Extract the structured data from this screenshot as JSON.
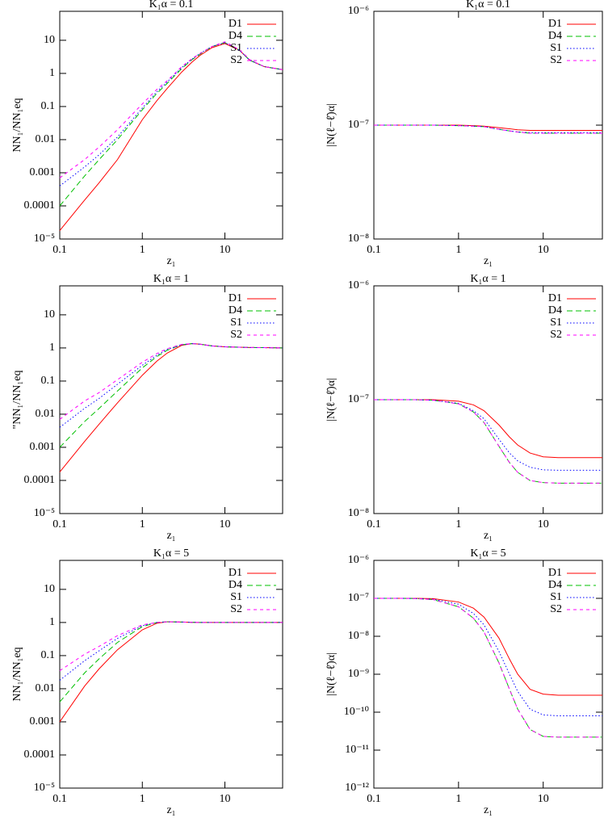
{
  "chart_data": [
    {
      "type": "line",
      "title": "K₁α = 0.1",
      "xlabel": "z₁",
      "ylabel": "NN₁/NN₁eq",
      "log_x": true,
      "log_y": true,
      "legend": "upper right",
      "grid": false,
      "xlim": [
        0.1,
        50
      ],
      "xticks": [
        0.1,
        1,
        10
      ],
      "ylim": [
        1e-05,
        75
      ],
      "yticks": [
        {
          "value": 1e-05,
          "label": "10⁻⁵"
        },
        0.0001,
        0.001,
        0.01,
        0.1,
        1,
        10
      ],
      "x": [
        0.1,
        0.2,
        0.3,
        0.5,
        1,
        1.5,
        2,
        3,
        4,
        5,
        7,
        10,
        15,
        20,
        30,
        50
      ],
      "series": [
        {
          "name": "D1",
          "color": "#ff0000",
          "style": "solid",
          "values": [
            1.8e-05,
            0.00015,
            0.0005,
            0.0025,
            0.04,
            0.15,
            0.35,
            1.1,
            2.2,
            3.5,
            6,
            8,
            5,
            2.5,
            1.6,
            1.3
          ]
        },
        {
          "name": "D4",
          "color": "#00c000",
          "style": "dashed",
          "values": [
            0.0001,
            0.0008,
            0.0025,
            0.01,
            0.08,
            0.25,
            0.5,
            1.4,
            2.6,
            3.8,
            6.5,
            8.5,
            5,
            2.5,
            1.6,
            1.3
          ]
        },
        {
          "name": "S1",
          "color": "#0000ff",
          "style": "dotted",
          "values": [
            0.0004,
            0.0015,
            0.0035,
            0.012,
            0.09,
            0.28,
            0.55,
            1.5,
            2.7,
            4,
            6.5,
            8.5,
            5,
            2.5,
            1.6,
            1.3
          ]
        },
        {
          "name": "S2",
          "color": "#ff00ff",
          "style": "short-dashed",
          "values": [
            0.0007,
            0.0025,
            0.006,
            0.02,
            0.12,
            0.33,
            0.6,
            1.6,
            2.8,
            4,
            6.5,
            9,
            5.2,
            2.6,
            1.6,
            1.3
          ]
        }
      ]
    },
    {
      "type": "line",
      "title": "K₁α = 0.1",
      "xlabel": "z₁",
      "ylabel": "|N(ℓ−ℓ̄)α|",
      "log_x": true,
      "log_y": true,
      "legend": "upper right",
      "grid": false,
      "xlim": [
        0.1,
        50
      ],
      "xticks": [
        0.1,
        1,
        10
      ],
      "ylim": [
        1e-08,
        1e-06
      ],
      "yticks": [
        {
          "value": 1e-08,
          "label": "10⁻⁸"
        },
        {
          "value": 1e-07,
          "label": "10⁻⁷"
        },
        {
          "value": 1e-06,
          "label": "10⁻⁶"
        }
      ],
      "x": [
        0.1,
        0.2,
        0.3,
        0.5,
        1,
        1.5,
        2,
        3,
        4,
        5,
        7,
        10,
        15,
        20,
        30,
        50
      ],
      "series": [
        {
          "name": "D1",
          "color": "#ff0000",
          "style": "solid",
          "values": [
            1e-07,
            1e-07,
            1e-07,
            1e-07,
            1e-07,
            9.9e-08,
            9.8e-08,
            9.5e-08,
            9.3e-08,
            9.1e-08,
            9e-08,
            9e-08,
            9e-08,
            9e-08,
            9e-08,
            9e-08
          ]
        },
        {
          "name": "D4",
          "color": "#00c000",
          "style": "dashed",
          "values": [
            1e-07,
            1e-07,
            1e-07,
            1e-07,
            9.9e-08,
            9.8e-08,
            9.7e-08,
            9.2e-08,
            8.9e-08,
            8.7e-08,
            8.5e-08,
            8.5e-08,
            8.5e-08,
            8.5e-08,
            8.5e-08,
            8.5e-08
          ]
        },
        {
          "name": "S1",
          "color": "#0000ff",
          "style": "dotted",
          "values": [
            1e-07,
            1e-07,
            1e-07,
            1e-07,
            9.9e-08,
            9.8e-08,
            9.7e-08,
            9.2e-08,
            8.9e-08,
            8.7e-08,
            8.6e-08,
            8.6e-08,
            8.6e-08,
            8.6e-08,
            8.6e-08,
            8.6e-08
          ]
        },
        {
          "name": "S2",
          "color": "#ff00ff",
          "style": "short-dashed",
          "values": [
            1e-07,
            1e-07,
            1e-07,
            1e-07,
            9.9e-08,
            9.8e-08,
            9.7e-08,
            9.2e-08,
            8.9e-08,
            8.7e-08,
            8.5e-08,
            8.5e-08,
            8.5e-08,
            8.5e-08,
            8.5e-08,
            8.5e-08
          ]
        }
      ]
    },
    {
      "type": "line",
      "title": "K₁α = 1",
      "xlabel": "z₁",
      "ylabel": "\"NN₁/NN₁eq",
      "log_x": true,
      "log_y": true,
      "legend": "upper right",
      "grid": false,
      "xlim": [
        0.1,
        50
      ],
      "xticks": [
        0.1,
        1,
        10
      ],
      "ylim": [
        1e-05,
        75
      ],
      "yticks": [
        {
          "value": 1e-05,
          "label": "10⁻⁵"
        },
        0.0001,
        0.001,
        0.01,
        0.1,
        1,
        10
      ],
      "x": [
        0.1,
        0.2,
        0.3,
        0.5,
        1,
        1.5,
        2,
        3,
        4,
        5,
        7,
        10,
        15,
        20,
        30,
        50
      ],
      "series": [
        {
          "name": "D1",
          "color": "#ff0000",
          "style": "solid",
          "values": [
            0.00018,
            0.0015,
            0.005,
            0.022,
            0.15,
            0.4,
            0.7,
            1.2,
            1.35,
            1.3,
            1.15,
            1.08,
            1.05,
            1.03,
            1.02,
            1
          ]
        },
        {
          "name": "D4",
          "color": "#00c000",
          "style": "dashed",
          "values": [
            0.001,
            0.006,
            0.015,
            0.05,
            0.25,
            0.55,
            0.85,
            1.25,
            1.35,
            1.3,
            1.15,
            1.08,
            1.05,
            1.03,
            1.02,
            1
          ]
        },
        {
          "name": "S1",
          "color": "#0000ff",
          "style": "dotted",
          "values": [
            0.004,
            0.015,
            0.03,
            0.08,
            0.3,
            0.6,
            0.9,
            1.25,
            1.35,
            1.3,
            1.15,
            1.08,
            1.05,
            1.03,
            1.02,
            1
          ]
        },
        {
          "name": "S2",
          "color": "#ff00ff",
          "style": "short-dashed",
          "values": [
            0.007,
            0.025,
            0.045,
            0.11,
            0.37,
            0.68,
            0.95,
            1.28,
            1.35,
            1.3,
            1.15,
            1.08,
            1.05,
            1.03,
            1.02,
            1
          ]
        }
      ]
    },
    {
      "type": "line",
      "title": "K₁α = 1",
      "xlabel": "z₁",
      "ylabel": "|N(ℓ−ℓ̄)α|",
      "log_x": true,
      "log_y": true,
      "legend": "upper right",
      "grid": false,
      "xlim": [
        0.1,
        50
      ],
      "xticks": [
        0.1,
        1,
        10
      ],
      "ylim": [
        1e-08,
        1e-06
      ],
      "yticks": [
        {
          "value": 1e-08,
          "label": "10⁻⁸"
        },
        {
          "value": 1e-07,
          "label": "10⁻⁷"
        },
        {
          "value": 1e-06,
          "label": "10⁻⁶"
        }
      ],
      "x": [
        0.1,
        0.2,
        0.3,
        0.5,
        1,
        1.5,
        2,
        3,
        4,
        5,
        7,
        10,
        15,
        20,
        30,
        50
      ],
      "series": [
        {
          "name": "D1",
          "color": "#ff0000",
          "style": "solid",
          "values": [
            1e-07,
            1e-07,
            1e-07,
            1e-07,
            9.7e-08,
            9e-08,
            8e-08,
            6e-08,
            4.7e-08,
            4e-08,
            3.4e-08,
            3.15e-08,
            3.1e-08,
            3.1e-08,
            3.1e-08,
            3.1e-08
          ]
        },
        {
          "name": "D4",
          "color": "#00c000",
          "style": "dashed",
          "values": [
            1e-07,
            1e-07,
            1e-07,
            9.9e-08,
            9.2e-08,
            7.8e-08,
            6.3e-08,
            3.9e-08,
            2.8e-08,
            2.3e-08,
            1.95e-08,
            1.87e-08,
            1.85e-08,
            1.85e-08,
            1.85e-08,
            1.85e-08
          ]
        },
        {
          "name": "S1",
          "color": "#0000ff",
          "style": "dotted",
          "values": [
            1e-07,
            1e-07,
            1e-07,
            9.9e-08,
            9.3e-08,
            8e-08,
            6.8e-08,
            4.5e-08,
            3.4e-08,
            2.9e-08,
            2.55e-08,
            2.42e-08,
            2.4e-08,
            2.4e-08,
            2.4e-08,
            2.4e-08
          ]
        },
        {
          "name": "S2",
          "color": "#ff00ff",
          "style": "short-dashed",
          "values": [
            1e-07,
            1e-07,
            1e-07,
            9.9e-08,
            9.2e-08,
            7.8e-08,
            6.3e-08,
            3.9e-08,
            2.8e-08,
            2.3e-08,
            1.95e-08,
            1.87e-08,
            1.85e-08,
            1.85e-08,
            1.85e-08,
            1.85e-08
          ]
        }
      ]
    },
    {
      "type": "line",
      "title": "K₁α = 5",
      "xlabel": "z₁",
      "ylabel": "NN₁/NN₁eq",
      "log_x": true,
      "log_y": true,
      "legend": "upper right",
      "grid": false,
      "xlim": [
        0.1,
        50
      ],
      "xticks": [
        0.1,
        1,
        10
      ],
      "ylim": [
        1e-05,
        75
      ],
      "yticks": [
        {
          "value": 1e-05,
          "label": "10⁻⁵"
        },
        0.0001,
        0.001,
        0.01,
        0.1,
        1,
        10
      ],
      "x": [
        0.1,
        0.2,
        0.3,
        0.5,
        1,
        1.5,
        2,
        3,
        4,
        5,
        7,
        10,
        15,
        20,
        30,
        50
      ],
      "series": [
        {
          "name": "D1",
          "color": "#ff0000",
          "style": "solid",
          "values": [
            0.001,
            0.012,
            0.04,
            0.15,
            0.6,
            0.95,
            1.05,
            1.03,
            1.01,
            1,
            1,
            1,
            1,
            1,
            1,
            1
          ]
        },
        {
          "name": "D4",
          "color": "#00c000",
          "style": "dashed",
          "values": [
            0.004,
            0.03,
            0.08,
            0.25,
            0.75,
            1,
            1.05,
            1.03,
            1.01,
            1,
            1,
            1,
            1,
            1,
            1,
            1
          ]
        },
        {
          "name": "S1",
          "color": "#0000ff",
          "style": "dotted",
          "values": [
            0.018,
            0.07,
            0.14,
            0.33,
            0.8,
            1,
            1.05,
            1.03,
            1.01,
            1,
            1,
            1,
            1,
            1,
            1,
            1
          ]
        },
        {
          "name": "S2",
          "color": "#ff00ff",
          "style": "short-dashed",
          "values": [
            0.035,
            0.11,
            0.19,
            0.4,
            0.85,
            1,
            1.05,
            1.03,
            1.01,
            1,
            1,
            1,
            1,
            1,
            1,
            1
          ]
        }
      ]
    },
    {
      "type": "line",
      "title": "K₁α = 5",
      "xlabel": "z₁",
      "ylabel": "|N(ℓ−ℓ̄)α|",
      "log_x": true,
      "log_y": true,
      "legend": "upper right",
      "grid": false,
      "xlim": [
        0.1,
        50
      ],
      "xticks": [
        0.1,
        1,
        10
      ],
      "ylim": [
        1e-12,
        1e-06
      ],
      "yticks": [
        {
          "value": 1e-12,
          "label": "10⁻¹²"
        },
        {
          "value": 1e-11,
          "label": "10⁻¹¹"
        },
        {
          "value": 1e-10,
          "label": "10⁻¹⁰"
        },
        {
          "value": 1e-09,
          "label": "10⁻⁹"
        },
        {
          "value": 1e-08,
          "label": "10⁻⁸"
        },
        {
          "value": 1e-07,
          "label": "10⁻⁷"
        },
        {
          "value": 1e-06,
          "label": "10⁻⁶"
        }
      ],
      "x": [
        0.1,
        0.2,
        0.3,
        0.5,
        1,
        1.5,
        2,
        3,
        4,
        5,
        7,
        10,
        15,
        20,
        30,
        50
      ],
      "series": [
        {
          "name": "D1",
          "color": "#ff0000",
          "style": "solid",
          "values": [
            1e-07,
            1e-07,
            1e-07,
            9.8e-08,
            8e-08,
            5.5e-08,
            3.2e-08,
            9e-09,
            2.5e-09,
            1e-09,
            4e-10,
            3e-10,
            2.8e-10,
            2.8e-10,
            2.8e-10,
            2.8e-10
          ]
        },
        {
          "name": "D4",
          "color": "#00c000",
          "style": "dashed",
          "values": [
            1e-07,
            1e-07,
            9.9e-08,
            9.3e-08,
            6e-08,
            3e-08,
            1.3e-08,
            2e-09,
            4e-10,
            1.2e-10,
            3.5e-11,
            2.3e-11,
            2.2e-11,
            2.2e-11,
            2.2e-11,
            2.2e-11
          ]
        },
        {
          "name": "S1",
          "color": "#0000ff",
          "style": "dotted",
          "values": [
            1e-07,
            1e-07,
            9.9e-08,
            9.5e-08,
            7e-08,
            4e-08,
            2e-08,
            4e-09,
            1e-09,
            3.5e-10,
            1.2e-10,
            8.5e-11,
            8e-11,
            8e-11,
            8e-11,
            8e-11
          ]
        },
        {
          "name": "S2",
          "color": "#ff00ff",
          "style": "short-dashed",
          "values": [
            1e-07,
            1e-07,
            9.9e-08,
            9.3e-08,
            6e-08,
            3e-08,
            1.3e-08,
            2e-09,
            4e-10,
            1.2e-10,
            3.5e-11,
            2.3e-11,
            2.2e-11,
            2.2e-11,
            2.2e-11,
            2.2e-11
          ]
        }
      ]
    }
  ]
}
